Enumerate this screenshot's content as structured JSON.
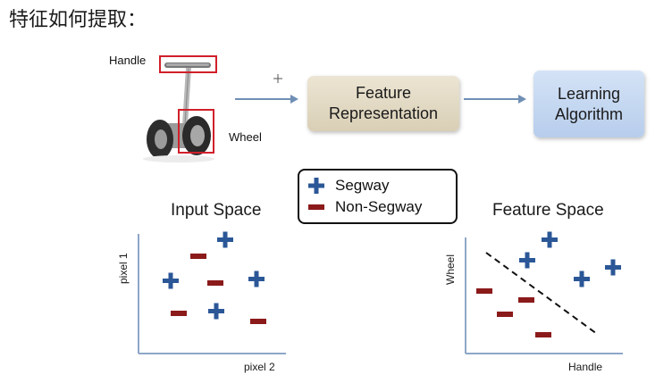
{
  "heading": "特征如何提取：",
  "segway": {
    "handle_label": "Handle",
    "wheel_label": "Wheel"
  },
  "pipeline": {
    "feature_box": [
      "Feature",
      "Representation"
    ],
    "learning_box": [
      "Learning",
      "Algorithm"
    ]
  },
  "legend": {
    "items": [
      {
        "symbol": "plus",
        "label": "Segway",
        "color": "#2b5797"
      },
      {
        "symbol": "minus",
        "label": "Non-Segway",
        "color": "#8b1a1a"
      }
    ]
  },
  "input_space": {
    "title": "Input Space",
    "xlabel": "pixel 2",
    "ylabel": "pixel 1"
  },
  "feature_space": {
    "title": "Feature Space",
    "xlabel": "Handle",
    "ylabel": "Wheel"
  },
  "colors": {
    "plus": "#2b5797",
    "minus": "#8b1a1a",
    "axis": "#8ea6c8",
    "arrow": "#6f8fb5"
  }
}
